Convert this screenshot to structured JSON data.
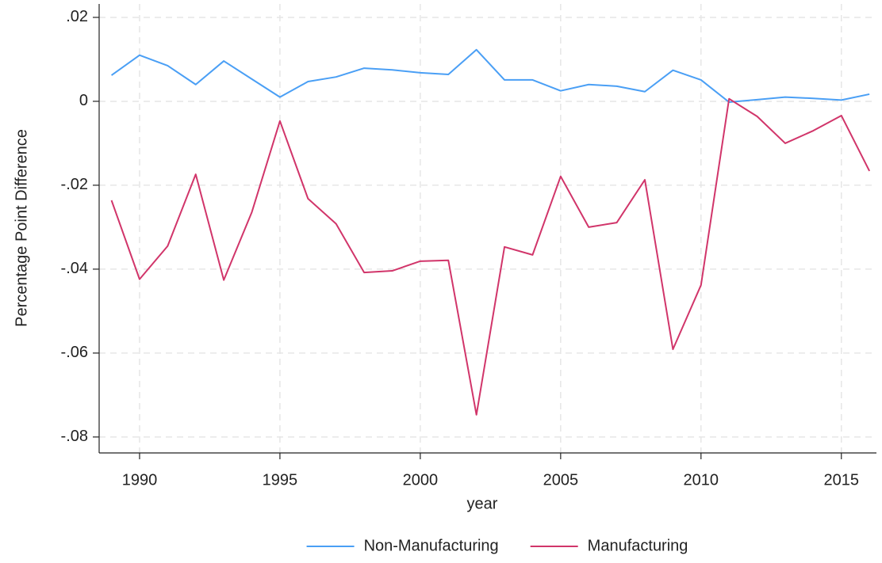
{
  "chart_data": {
    "type": "line",
    "x_label": "year",
    "y_label": "Percentage Point Difference",
    "x": [
      1989,
      1990,
      1991,
      1992,
      1993,
      1994,
      1995,
      1996,
      1997,
      1998,
      1999,
      2000,
      2001,
      2002,
      2003,
      2004,
      2005,
      2006,
      2007,
      2008,
      2009,
      2010,
      2011,
      2012,
      2013,
      2014,
      2015,
      2016
    ],
    "series": [
      {
        "name": "Non-Manufacturing",
        "color": "#4a9ff5",
        "values": [
          0.0062,
          0.011,
          0.0085,
          0.004,
          0.0096,
          0.0053,
          0.001,
          0.0047,
          0.0058,
          0.0079,
          0.0075,
          0.0068,
          0.0064,
          0.0123,
          0.0051,
          0.0051,
          0.0025,
          0.004,
          0.0036,
          0.0023,
          0.0074,
          0.0051,
          -0.0002,
          0.0004,
          0.001,
          0.0007,
          0.0003,
          0.0017
        ]
      },
      {
        "name": "Manufacturing",
        "color": "#d1356a",
        "values": [
          -0.0236,
          -0.0424,
          -0.0345,
          -0.0174,
          -0.0426,
          -0.0264,
          -0.0047,
          -0.0232,
          -0.0292,
          -0.0408,
          -0.0404,
          -0.0381,
          -0.0379,
          -0.0747,
          -0.0347,
          -0.0366,
          -0.0179,
          -0.03,
          -0.0289,
          -0.0187,
          -0.0591,
          -0.0438,
          0.0006,
          -0.0036,
          -0.01,
          -0.007,
          -0.0034,
          -0.0166
        ]
      }
    ],
    "xlim": [
      1988.56,
      2016.25
    ],
    "ylim": [
      -0.0838,
      0.0232
    ],
    "xticks": [
      1990,
      1995,
      2000,
      2005,
      2010,
      2015
    ],
    "yticks": [
      {
        "value": 0.02,
        "label": ".02"
      },
      0,
      {
        "value": -0.02,
        "label": "-.02"
      },
      {
        "value": -0.04,
        "label": "-.04"
      },
      {
        "value": -0.06,
        "label": "-.06"
      },
      {
        "value": -0.08,
        "label": "-.08"
      }
    ],
    "grid": true,
    "legend": "bottom"
  }
}
